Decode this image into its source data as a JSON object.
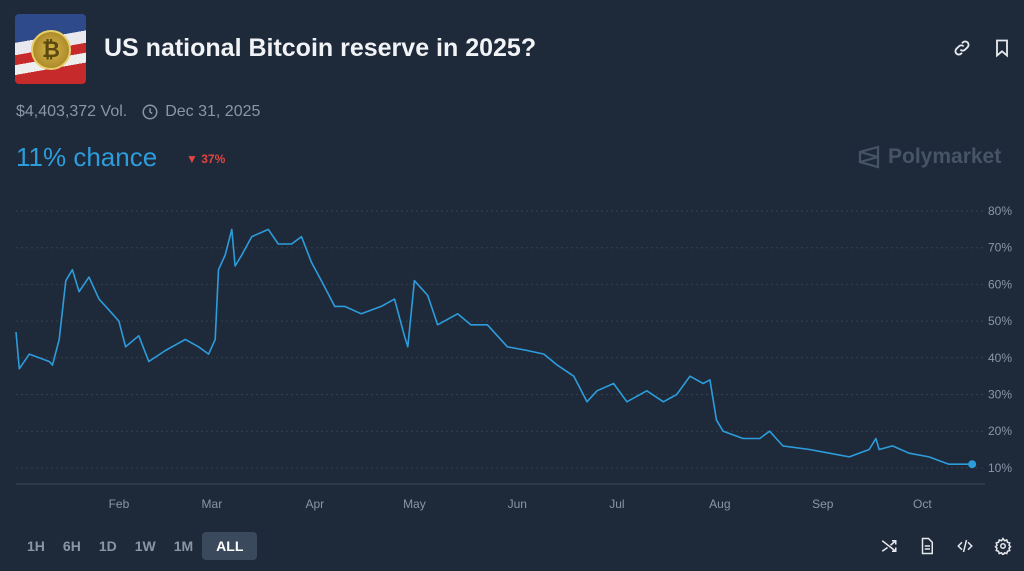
{
  "header": {
    "title": "US national Bitcoin reserve in 2025?",
    "volume": "$4,403,372 Vol.",
    "end_date": "Dec 31, 2025",
    "chance": "11% chance",
    "change": "37%",
    "change_direction": "down",
    "brand": "Polymarket",
    "thumbnail_icon": "bitcoin-flag-image"
  },
  "ranges": {
    "items": [
      "1H",
      "6H",
      "1D",
      "1W",
      "1M",
      "ALL"
    ],
    "selected": "ALL"
  },
  "colors": {
    "line": "#2d9cdb",
    "down": "#e0453f",
    "background": "#1e2a3a"
  },
  "chart_data": {
    "type": "line",
    "title": "",
    "xlabel": "",
    "ylabel": "",
    "ylim": [
      10,
      80
    ],
    "y_ticks": [
      "10%",
      "20%",
      "30%",
      "40%",
      "50%",
      "60%",
      "70%",
      "80%"
    ],
    "x_ticks": [
      {
        "label": "Feb",
        "date": "2025-02-01"
      },
      {
        "label": "Mar",
        "date": "2025-03-01"
      },
      {
        "label": "Apr",
        "date": "2025-04-01"
      },
      {
        "label": "May",
        "date": "2025-05-01"
      },
      {
        "label": "Jun",
        "date": "2025-06-01"
      },
      {
        "label": "Jul",
        "date": "2025-07-01"
      },
      {
        "label": "Aug",
        "date": "2025-08-01"
      },
      {
        "label": "Sep",
        "date": "2025-09-01"
      },
      {
        "label": "Oct",
        "date": "2025-10-01"
      }
    ],
    "grid": true,
    "y_axis_position": "right",
    "series": [
      {
        "x": [
          "2025-01-01",
          "2025-01-02",
          "2025-01-05",
          "2025-01-11",
          "2025-01-12",
          "2025-01-14",
          "2025-01-16",
          "2025-01-18",
          "2025-01-20",
          "2025-01-23",
          "2025-01-26",
          "2025-01-29",
          "2025-02-01",
          "2025-02-03",
          "2025-02-07",
          "2025-02-10",
          "2025-02-15",
          "2025-02-21",
          "2025-02-25",
          "2025-02-28",
          "2025-03-02",
          "2025-03-03",
          "2025-03-05",
          "2025-03-07",
          "2025-03-08",
          "2025-03-10",
          "2025-03-13",
          "2025-03-18",
          "2025-03-21",
          "2025-03-25",
          "2025-03-28",
          "2025-03-31",
          "2025-04-03",
          "2025-04-07",
          "2025-04-10",
          "2025-04-15",
          "2025-04-21",
          "2025-04-25",
          "2025-04-28",
          "2025-04-29",
          "2025-05-01",
          "2025-05-05",
          "2025-05-08",
          "2025-05-14",
          "2025-05-18",
          "2025-05-23",
          "2025-05-29",
          "2025-06-04",
          "2025-06-09",
          "2025-06-13",
          "2025-06-18",
          "2025-06-22",
          "2025-06-25",
          "2025-06-30",
          "2025-07-04",
          "2025-07-10",
          "2025-07-15",
          "2025-07-19",
          "2025-07-23",
          "2025-07-27",
          "2025-07-29",
          "2025-07-31",
          "2025-08-02",
          "2025-08-08",
          "2025-08-13",
          "2025-08-16",
          "2025-08-20",
          "2025-08-28",
          "2025-09-03",
          "2025-09-09",
          "2025-09-15",
          "2025-09-17",
          "2025-09-18",
          "2025-09-22",
          "2025-09-27",
          "2025-10-03",
          "2025-10-09",
          "2025-10-16"
        ],
        "y": [
          47,
          37,
          41,
          39,
          38,
          45,
          61,
          64,
          58,
          62,
          56,
          53,
          50,
          43,
          46,
          39,
          42,
          45,
          43,
          41,
          45,
          64,
          68,
          75,
          65,
          68,
          73,
          75,
          71,
          71,
          73,
          66,
          61,
          54,
          54,
          52,
          54,
          56,
          46,
          43,
          61,
          57,
          49,
          52,
          49,
          49,
          43,
          42,
          41,
          38,
          35,
          28,
          31,
          33,
          28,
          31,
          28,
          30,
          35,
          33,
          34,
          23,
          20,
          18,
          18,
          20,
          16,
          15,
          14,
          13,
          15,
          18,
          15,
          16,
          14,
          13,
          11,
          11
        ]
      }
    ]
  }
}
